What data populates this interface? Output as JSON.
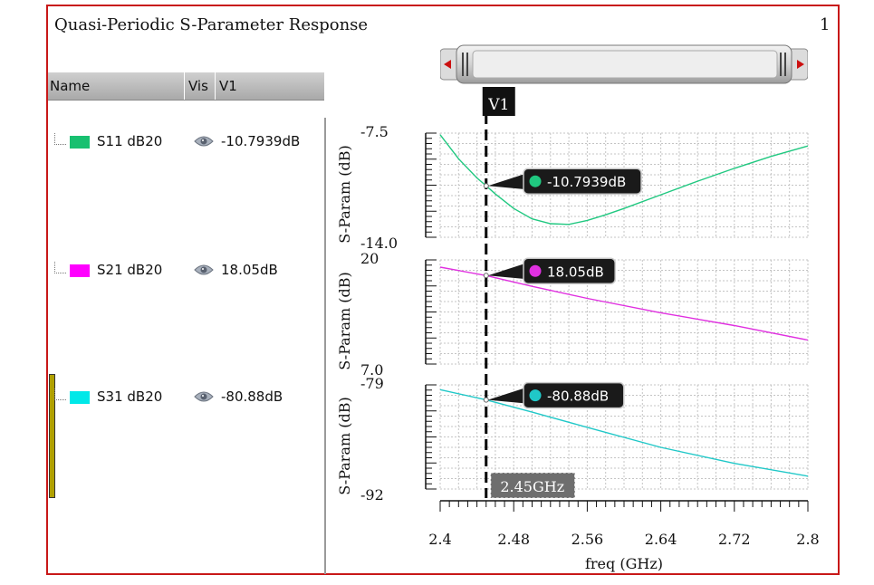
{
  "window": {
    "title": "Quasi-Periodic S-Parameter Response",
    "page_number": "1"
  },
  "legend": {
    "headers": {
      "name": "Name",
      "vis": "Vis",
      "marker": "V1"
    },
    "rows": [
      {
        "name": "S11 dB20",
        "value": "-10.7939dB",
        "color": "#18c070"
      },
      {
        "name": "S21 dB20",
        "value": "18.05dB",
        "color": "#ff00ff"
      },
      {
        "name": "S31 dB20",
        "value": "-80.88dB",
        "color": "#00e8e8"
      }
    ]
  },
  "marker": {
    "label": "V1",
    "freq_label": "2.45GHz",
    "x": 2.45
  },
  "chart_data": {
    "type": "line",
    "xlabel": "freq (GHz)",
    "xlim": [
      2.4,
      2.8
    ],
    "x_ticks": [
      2.4,
      2.48,
      2.56,
      2.64,
      2.72,
      2.8
    ],
    "x_tick_labels": [
      "2.4",
      "2.48",
      "2.56",
      "2.64",
      "2.72",
      "2.8"
    ],
    "grid": true,
    "strips": [
      {
        "series_name": "S11 dB20",
        "ylabel": "S-Param (dB)",
        "ylim": [
          -14.0,
          -7.5
        ],
        "ytick_labels": [
          "-7.5",
          "-14.0"
        ],
        "color": "#20c880",
        "x": [
          2.4,
          2.42,
          2.44,
          2.45,
          2.46,
          2.48,
          2.5,
          2.52,
          2.54,
          2.56,
          2.58,
          2.6,
          2.64,
          2.68,
          2.72,
          2.76,
          2.8
        ],
        "y": [
          -7.6,
          -9.1,
          -10.3,
          -10.79,
          -11.3,
          -12.2,
          -12.85,
          -13.15,
          -13.2,
          -12.95,
          -12.6,
          -12.2,
          -11.35,
          -10.5,
          -9.7,
          -8.95,
          -8.3
        ],
        "annotation": "-10.7939dB"
      },
      {
        "series_name": "S21 dB20",
        "ylabel": "S-Param (dB)",
        "ylim": [
          7.0,
          20
        ],
        "ytick_labels": [
          "20",
          "7.0"
        ],
        "color": "#e030e0",
        "x": [
          2.4,
          2.45,
          2.5,
          2.56,
          2.64,
          2.72,
          2.8
        ],
        "y": [
          19.1,
          18.05,
          16.7,
          15.2,
          13.4,
          11.8,
          10.0
        ],
        "annotation": "18.05dB"
      },
      {
        "series_name": "S31 dB20",
        "ylabel": "S-Param (dB)",
        "ylim": [
          -92,
          -79
        ],
        "ytick_labels": [
          "-79",
          "-92"
        ],
        "color": "#20c8c8",
        "x": [
          2.4,
          2.45,
          2.5,
          2.56,
          2.64,
          2.72,
          2.8
        ],
        "y": [
          -79.6,
          -80.88,
          -82.4,
          -84.3,
          -86.8,
          -88.8,
          -90.4
        ],
        "annotation": "-80.88dB"
      }
    ]
  }
}
